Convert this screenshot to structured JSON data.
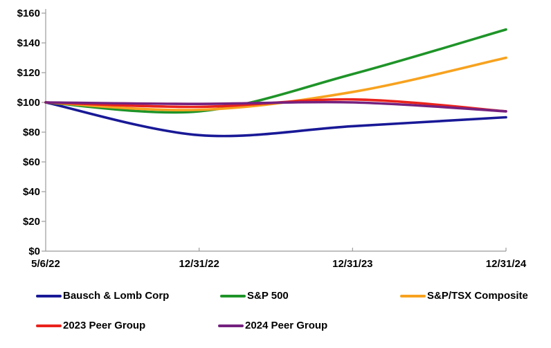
{
  "chart_data": {
    "type": "line",
    "title": "",
    "line_style": "smooth",
    "grid": false,
    "legend_position": "bottom",
    "axis_color": "#9b9b9b",
    "text_color": "#000000",
    "categories": [
      "5/6/22",
      "12/31/22",
      "12/31/23",
      "12/31/24"
    ],
    "xlabel": "",
    "ylabel": "",
    "ylim": [
      0,
      160
    ],
    "y_tick_step": 20,
    "y_tick_labels": [
      "$0",
      "$20",
      "$40",
      "$60",
      "$80",
      "$100",
      "$120",
      "$140",
      "$160"
    ],
    "series": [
      {
        "name": "Bausch & Lomb Corp",
        "color": "#191997",
        "values": [
          100,
          78,
          84,
          90
        ]
      },
      {
        "name": "S&P 500",
        "color": "#1e9428",
        "values": [
          100,
          94,
          119,
          149
        ]
      },
      {
        "name": "S&P/TSX Composite",
        "color": "#f7a21f",
        "values": [
          100,
          95,
          107,
          130
        ]
      },
      {
        "name": "2023 Peer Group",
        "color": "#e9231c",
        "values": [
          100,
          97,
          102,
          94
        ]
      },
      {
        "name": "2024 Peer Group",
        "color": "#74217f",
        "values": [
          100,
          99,
          100,
          94
        ]
      }
    ]
  }
}
